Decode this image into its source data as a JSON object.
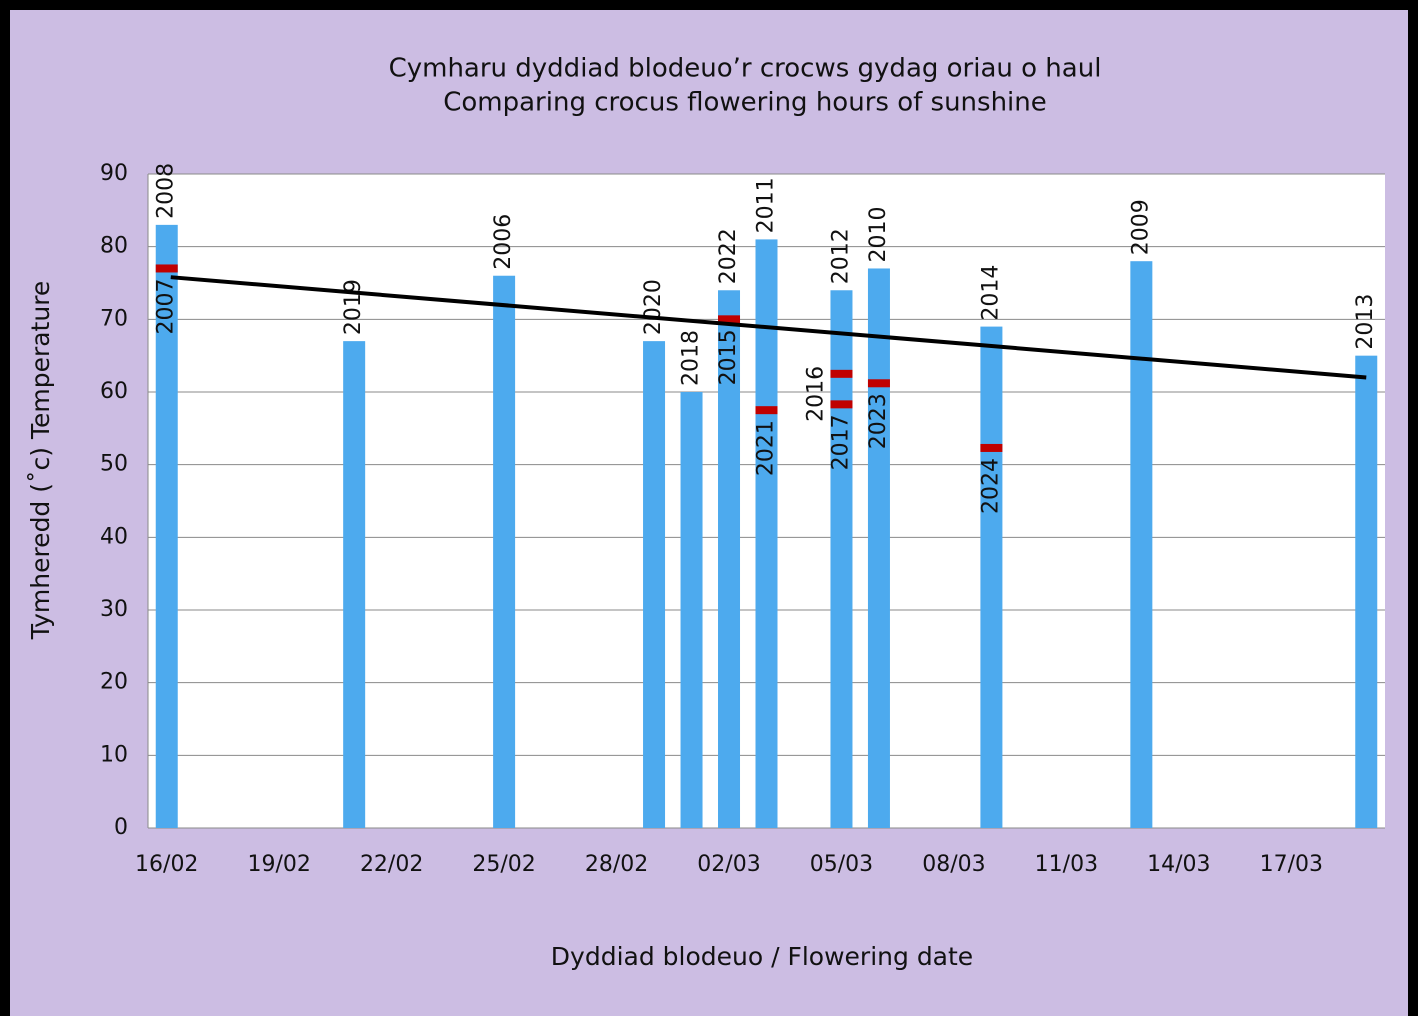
{
  "chart_data": {
    "type": "bar",
    "title": "Cymharu dyddiad blodeuo’r crocws gydag oriau o haul",
    "subtitle": "Comparing crocus flowering hours of sunshine",
    "y_label": "Tymheredd (˚c)  Temperature",
    "x_label": "Dyddiad blodeuo / Flowering date",
    "categories": [
      "16/02",
      null,
      null,
      "19/02",
      null,
      null,
      "22/02",
      null,
      null,
      "25/02",
      null,
      null,
      "28/02",
      null,
      null,
      "02/03",
      null,
      null,
      "05/03",
      null,
      null,
      "08/03",
      null,
      null,
      "11/03",
      null,
      null,
      "14/03",
      null,
      null,
      "17/03",
      null,
      null
    ],
    "series": [
      {
        "color": "#4daaee",
        "values": [
          83,
          null,
          null,
          null,
          null,
          67,
          null,
          null,
          null,
          76,
          null,
          null,
          null,
          67,
          60,
          74,
          81,
          null,
          74,
          77,
          null,
          null,
          69,
          null,
          null,
          null,
          78,
          null,
          null,
          null,
          null,
          null,
          65
        ],
        "labels": [
          "2008",
          null,
          null,
          null,
          null,
          "2019",
          null,
          null,
          null,
          "2006",
          null,
          null,
          null,
          "2020",
          "2018",
          "2022",
          "2011",
          null,
          "2012",
          "2010",
          null,
          null,
          "2014",
          null,
          null,
          null,
          "2009",
          null,
          null,
          null,
          null,
          null,
          "2013"
        ]
      },
      {
        "color": "#c00000",
        "values": [
          77,
          null,
          null,
          null,
          null,
          null,
          null,
          null,
          null,
          null,
          null,
          null,
          null,
          null,
          null,
          70,
          57.5,
          null,
          62.5,
          61.2,
          null,
          null,
          52.3,
          null,
          null,
          null,
          null,
          null,
          null,
          null,
          null,
          null,
          null
        ],
        "labels": [
          "2007",
          null,
          null,
          null,
          null,
          null,
          null,
          null,
          null,
          null,
          null,
          null,
          null,
          null,
          null,
          "2015",
          "2021",
          null,
          "2016",
          "2023",
          null,
          null,
          "2024",
          null,
          null,
          null,
          null,
          null,
          null,
          null,
          null,
          null,
          null
        ]
      },
      {
        "color": "#c00000",
        "values": [
          null,
          null,
          null,
          null,
          null,
          null,
          null,
          null,
          null,
          null,
          null,
          null,
          null,
          null,
          null,
          null,
          null,
          null,
          58.3,
          null,
          null,
          null,
          null,
          null,
          null,
          null,
          null,
          null,
          null,
          null,
          null,
          null,
          null
        ],
        "labels": [
          null,
          null,
          null,
          null,
          null,
          null,
          null,
          null,
          null,
          null,
          null,
          null,
          null,
          null,
          null,
          null,
          null,
          null,
          "2017",
          null,
          null,
          null,
          null,
          null,
          null,
          null,
          null,
          null,
          null,
          null,
          null,
          null,
          null
        ]
      }
    ],
    "trendline": {
      "color": "#000000",
      "values": [
        75.8,
        62
      ]
    },
    "ylim": [
      0,
      90
    ],
    "yticks": [
      0,
      10,
      20,
      30,
      40,
      50,
      60,
      70,
      80,
      90
    ],
    "grid": true
  }
}
